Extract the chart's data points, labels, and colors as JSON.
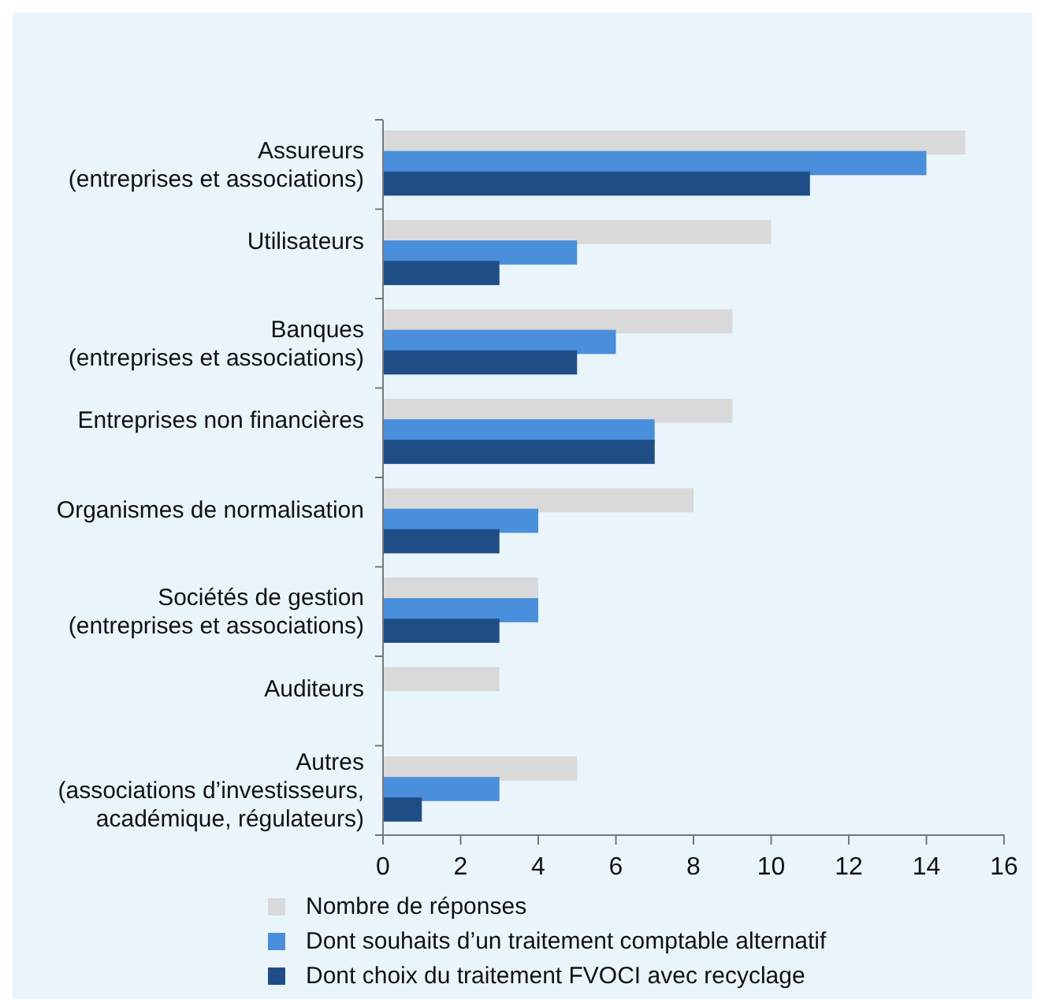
{
  "chart_data": {
    "type": "bar",
    "orientation": "horizontal",
    "categories": [
      "Assureurs\n(entreprises et associations)",
      "Utilisateurs",
      "Banques\n(entreprises et associations)",
      "Entreprises non financières",
      "Organismes de normalisation",
      "Sociétés de gestion\n(entreprises et associations)",
      "Auditeurs",
      "Autres\n(associations d’investisseurs,\nacadémique, régulateurs)"
    ],
    "series": [
      {
        "name": "Nombre de réponses",
        "color": "#d9d9d9",
        "values": [
          15,
          10,
          9,
          9,
          8,
          4,
          3,
          5
        ]
      },
      {
        "name": "Dont souhaits d’un traitement comptable alternatif",
        "color": "#4a8fdb",
        "values": [
          14,
          5,
          6,
          7,
          4,
          4,
          0,
          3
        ]
      },
      {
        "name": "Dont choix du traitement FVOCI avec recyclage",
        "color": "#1f4e87",
        "values": [
          11,
          3,
          5,
          7,
          3,
          3,
          0,
          1
        ]
      }
    ],
    "xlim": [
      0,
      16
    ],
    "xticks": [
      0,
      2,
      4,
      6,
      8,
      10,
      12,
      14,
      16
    ],
    "grid": false,
    "legend": "bottom"
  }
}
